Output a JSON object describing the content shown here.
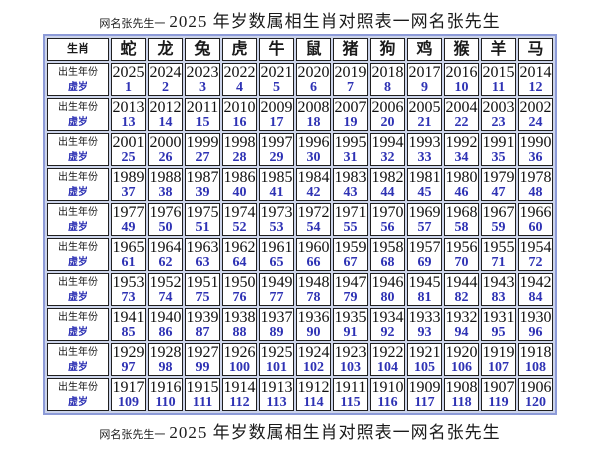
{
  "header": {
    "prefix": "网名张先生一",
    "main": "2025 年岁数属相生肖对照表一网名张先生"
  },
  "footer": {
    "prefix": "网名张先生一",
    "main": "2025 年岁数属相生肖对照表一网名张先生"
  },
  "table": {
    "corner_label": "生肖",
    "row_labels": {
      "year": "出生年份",
      "age": "虚岁"
    },
    "zodiac": [
      "蛇",
      "龙",
      "兔",
      "虎",
      "牛",
      "鼠",
      "猪",
      "狗",
      "鸡",
      "猴",
      "羊",
      "马"
    ],
    "groups": [
      {
        "years": [
          2025,
          2024,
          2023,
          2022,
          2021,
          2020,
          2019,
          2018,
          2017,
          2016,
          2015,
          2014
        ],
        "ages": [
          1,
          2,
          3,
          4,
          5,
          6,
          7,
          8,
          9,
          10,
          11,
          12
        ]
      },
      {
        "years": [
          2013,
          2012,
          2011,
          2010,
          2009,
          2008,
          2007,
          2006,
          2005,
          2004,
          2003,
          2002
        ],
        "ages": [
          13,
          14,
          15,
          16,
          17,
          18,
          19,
          20,
          21,
          22,
          23,
          24
        ]
      },
      {
        "years": [
          2001,
          2000,
          1999,
          1998,
          1997,
          1996,
          1995,
          1994,
          1993,
          1992,
          1991,
          1990
        ],
        "ages": [
          25,
          26,
          27,
          28,
          29,
          30,
          31,
          32,
          33,
          34,
          35,
          36
        ]
      },
      {
        "years": [
          1989,
          1988,
          1987,
          1986,
          1985,
          1984,
          1983,
          1982,
          1981,
          1980,
          1979,
          1978
        ],
        "ages": [
          37,
          38,
          39,
          40,
          41,
          42,
          43,
          44,
          45,
          46,
          47,
          48
        ]
      },
      {
        "years": [
          1977,
          1976,
          1975,
          1974,
          1973,
          1972,
          1971,
          1970,
          1969,
          1968,
          1967,
          1966
        ],
        "ages": [
          49,
          50,
          51,
          52,
          53,
          54,
          55,
          56,
          57,
          58,
          59,
          60
        ]
      },
      {
        "years": [
          1965,
          1964,
          1963,
          1962,
          1961,
          1960,
          1959,
          1958,
          1957,
          1956,
          1955,
          1954
        ],
        "ages": [
          61,
          62,
          63,
          64,
          65,
          66,
          67,
          68,
          69,
          70,
          71,
          72
        ]
      },
      {
        "years": [
          1953,
          1952,
          1951,
          1950,
          1949,
          1948,
          1947,
          1946,
          1945,
          1944,
          1943,
          1942
        ],
        "ages": [
          73,
          74,
          75,
          76,
          77,
          78,
          79,
          80,
          81,
          82,
          83,
          84
        ]
      },
      {
        "years": [
          1941,
          1940,
          1939,
          1938,
          1937,
          1936,
          1935,
          1934,
          1933,
          1932,
          1931,
          1930
        ],
        "ages": [
          85,
          86,
          87,
          88,
          89,
          90,
          91,
          92,
          93,
          94,
          95,
          96
        ]
      },
      {
        "years": [
          1929,
          1928,
          1927,
          1926,
          1925,
          1924,
          1923,
          1922,
          1921,
          1920,
          1919,
          1918
        ],
        "ages": [
          97,
          98,
          99,
          100,
          101,
          102,
          103,
          104,
          105,
          106,
          107,
          108
        ]
      },
      {
        "years": [
          1917,
          1916,
          1915,
          1914,
          1913,
          1912,
          1911,
          1910,
          1909,
          1908,
          1907,
          1906
        ],
        "ages": [
          109,
          110,
          111,
          112,
          113,
          114,
          115,
          116,
          117,
          118,
          119,
          120
        ]
      }
    ]
  },
  "colors": {
    "age_text": "#2e32b4",
    "year_text": "#111111",
    "cell_border": "#1f1f1f",
    "outer_border": "#8d9bd8",
    "grid_gap": "#ccd4ea",
    "background": "#ffffff"
  }
}
